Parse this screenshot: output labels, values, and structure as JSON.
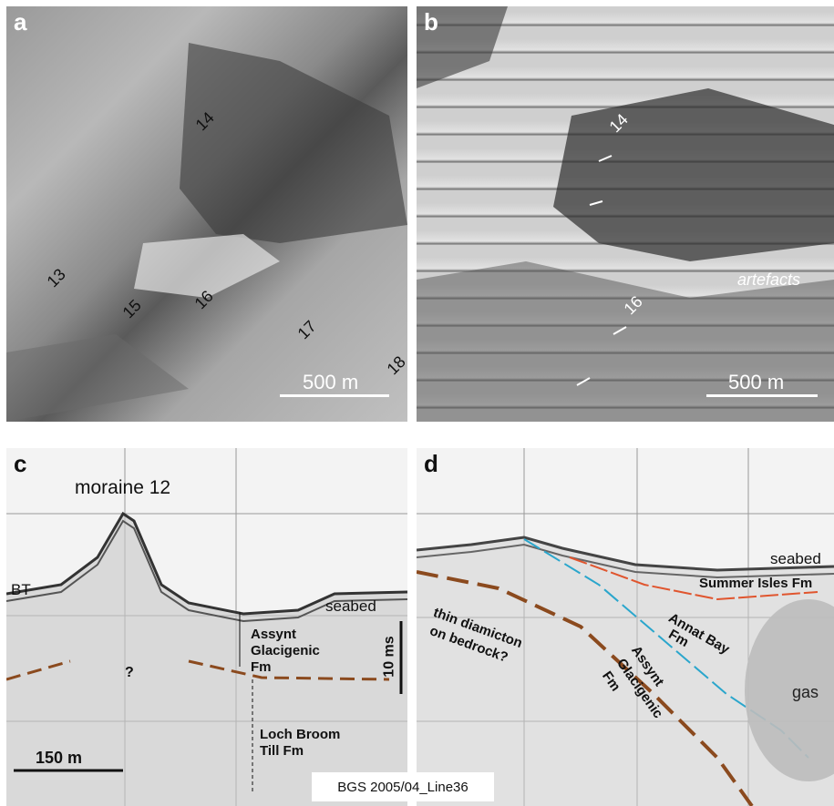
{
  "panel_a": {
    "letter": "a",
    "labels": [
      "14",
      "13",
      "15",
      "16",
      "17",
      "18"
    ],
    "scale_label": "500 m"
  },
  "panel_b": {
    "letter": "b",
    "labels": [
      "14",
      "16"
    ],
    "artefacts": "artefacts",
    "scale_label": "500 m"
  },
  "panel_c": {
    "letter": "c",
    "title": "moraine 12",
    "bt": "BT",
    "seabed": "seabed",
    "question": "?",
    "assynt": [
      "Assynt",
      "Glacigenic",
      "Fm"
    ],
    "loch": [
      "Loch Broom",
      "Till Fm"
    ],
    "vscale": "10 ms",
    "hscale": "150 m"
  },
  "panel_d": {
    "letter": "d",
    "seabed": "seabed",
    "summer": "Summer Isles Fm",
    "annat": [
      "Annat Bay",
      "Fm"
    ],
    "assynt": [
      "Assynt",
      "Glacigenic",
      "Fm"
    ],
    "diamicton": [
      "thin diamicton",
      "on bedrock?"
    ],
    "gas": "gas"
  },
  "caption": "BGS 2005/04_Line36",
  "colors": {
    "brown": "#8b4a1e",
    "blue": "#2aa6cc",
    "red": "#e0552e"
  }
}
